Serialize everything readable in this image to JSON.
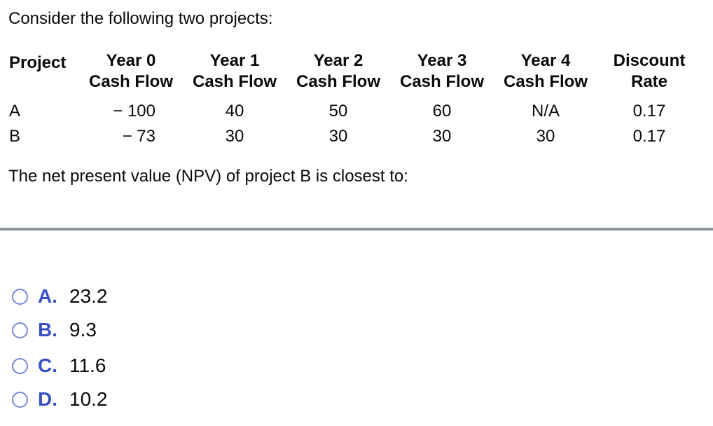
{
  "page": {
    "title": "Consider the following two projects:"
  },
  "table": {
    "project_header": "Project",
    "columns": [
      {
        "line1": "Year 0",
        "line2": "Cash Flow"
      },
      {
        "line1": "Year 1",
        "line2": "Cash Flow"
      },
      {
        "line1": "Year 2",
        "line2": "Cash Flow"
      },
      {
        "line1": "Year 3",
        "line2": "Cash Flow"
      },
      {
        "line1": "Year 4",
        "line2": "Cash Flow"
      },
      {
        "line1": "Discount",
        "line2": "Rate"
      }
    ],
    "rows": [
      {
        "project": "A",
        "year0": "− 100",
        "year1": "40",
        "year2": "50",
        "year3": "60",
        "year4": "N/A",
        "discount": "0.17"
      },
      {
        "project": "B",
        "year0": "− 73",
        "year1": "30",
        "year2": "30",
        "year3": "30",
        "year4": "30",
        "discount": "0.17"
      }
    ]
  },
  "question": {
    "text": "The net present value (NPV) of project B is closest to:"
  },
  "options": [
    {
      "letter": "A.",
      "value": "23.2"
    },
    {
      "letter": "B.",
      "value": "9.3"
    },
    {
      "letter": "C.",
      "value": "11.6"
    },
    {
      "letter": "D.",
      "value": "10.2"
    }
  ],
  "colors": {
    "option_letter": "#3b50c2",
    "radio_ring": "#7987d8",
    "divider": "#8e96a2"
  }
}
